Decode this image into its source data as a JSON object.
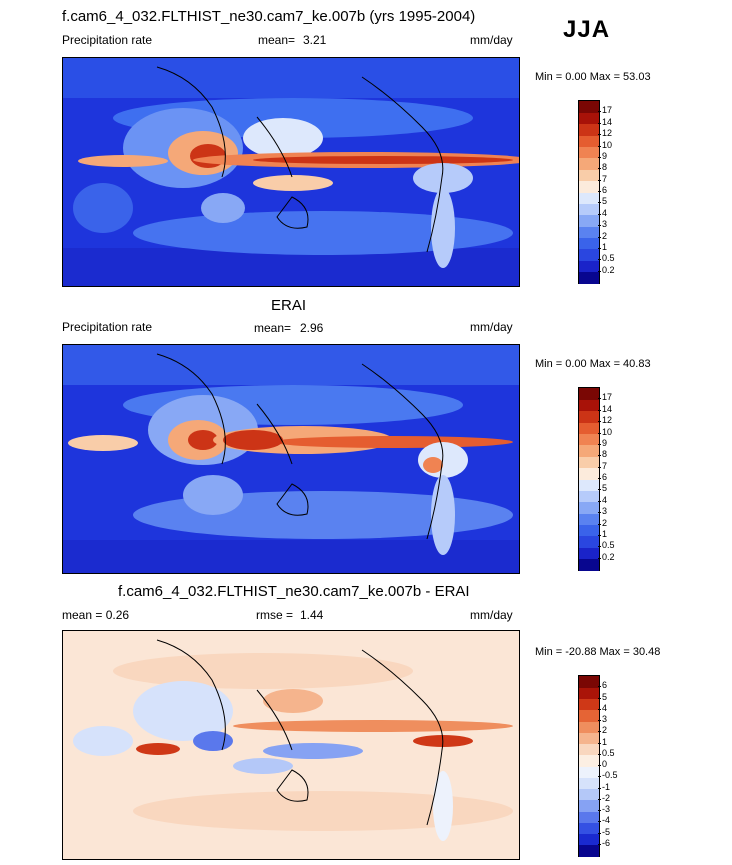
{
  "season": "JJA",
  "panels": [
    {
      "title": "f.cam6_4_032.FLTHIST_ne30.cam7_ke.007b (yrs 1995-2004)",
      "left_label": "Precipitation rate",
      "stat_label": "mean=",
      "stat_value": "3.21",
      "units": "mm/day",
      "minmax": "Min =   0.00 Max =  53.03",
      "colorbar": [
        "0.2",
        "0.5",
        "1",
        "2",
        "3",
        "4",
        "5",
        "6",
        "7",
        "8",
        "9",
        "10",
        "12",
        "14",
        "17"
      ],
      "colors": [
        "#08068f",
        "#1a23c9",
        "#2a46e0",
        "#3a63ea",
        "#5a82f0",
        "#88a8f5",
        "#b6cbfa",
        "#dde8fc",
        "#fcebdc",
        "#f9cda9",
        "#f5a878",
        "#f08352",
        "#e55d30",
        "#cc3416",
        "#a81208",
        "#7a0704"
      ]
    },
    {
      "title": "ERAI",
      "left_label": "Precipitation rate",
      "stat_label": "mean=",
      "stat_value": "2.96",
      "units": "mm/day",
      "minmax": "Min =   0.00 Max =  40.83",
      "colorbar": [
        "0.2",
        "0.5",
        "1",
        "2",
        "3",
        "4",
        "5",
        "6",
        "7",
        "8",
        "9",
        "10",
        "12",
        "14",
        "17"
      ],
      "colors": [
        "#08068f",
        "#1a23c9",
        "#2a46e0",
        "#3a63ea",
        "#5a82f0",
        "#88a8f5",
        "#b6cbfa",
        "#dde8fc",
        "#fcebdc",
        "#f9cda9",
        "#f5a878",
        "#f08352",
        "#e55d30",
        "#cc3416",
        "#a81208",
        "#7a0704"
      ]
    },
    {
      "title": "f.cam6_4_032.FLTHIST_ne30.cam7_ke.007b - ERAI",
      "left_label": "mean =   0.26",
      "stat_label": "rmse =",
      "stat_value": "1.44",
      "units": "mm/day",
      "minmax": "Min = -20.88 Max =  30.48",
      "colorbar": [
        "-6",
        "-5",
        "-4",
        "-3",
        "-2",
        "-1",
        "-0.5",
        "0",
        "0.5",
        "1",
        "2",
        "3",
        "4",
        "5",
        "6"
      ],
      "colors": [
        "#08068f",
        "#1a2ad0",
        "#3450e3",
        "#5a78ec",
        "#86a2f3",
        "#b4c8f8",
        "#d6e2fb",
        "#edf2fc",
        "#fcefe3",
        "#f9d7bf",
        "#f5b48d",
        "#ef8e5e",
        "#e56435",
        "#cf3817",
        "#aa1408",
        "#7a0704"
      ]
    }
  ],
  "colors": {
    "ocean_dry": "#1d2fd6",
    "diff_base": "#fbe6d6"
  }
}
